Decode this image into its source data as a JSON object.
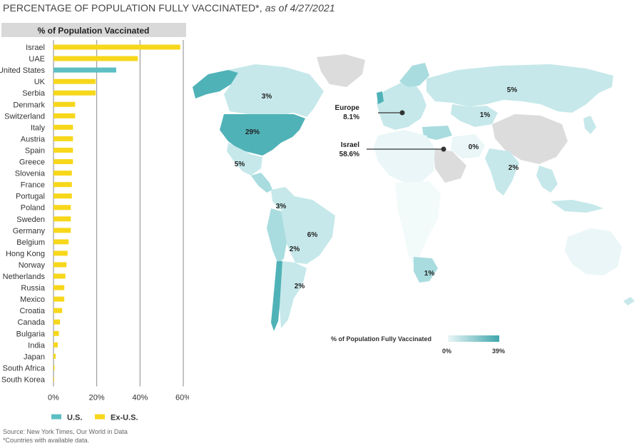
{
  "title": {
    "main": "Percentage of Population Fully Vaccinated*,",
    "date": "as of 4/27/2021"
  },
  "chart_data": [
    {
      "type": "bar",
      "orientation": "horizontal",
      "title": "% of Population Vaccinated",
      "categories": [
        "Israel",
        "UAE",
        "United States",
        "UK",
        "Serbia",
        "Denmark",
        "Switzerland",
        "Italy",
        "Austria",
        "Spain",
        "Greece",
        "Slovenia",
        "France",
        "Portugal",
        "Poland",
        "Sweden",
        "Germany",
        "Belgium",
        "Hong Kong",
        "Norway",
        "Netherlands",
        "Russia",
        "Mexico",
        "Croatia",
        "Canada",
        "Bulgaria",
        "India",
        "Japan",
        "South Africa",
        "South Korea"
      ],
      "values": [
        58.6,
        39,
        29,
        19.5,
        19.5,
        10,
        10,
        9,
        9,
        9,
        9,
        8.5,
        8.5,
        8.5,
        8,
        8,
        8,
        7,
        6.5,
        6,
        5.5,
        5,
        5,
        4,
        3,
        2.5,
        2,
        1,
        0.5,
        0.3
      ],
      "groups": [
        "Ex-U.S.",
        "Ex-U.S.",
        "U.S.",
        "Ex-U.S.",
        "Ex-U.S.",
        "Ex-U.S.",
        "Ex-U.S.",
        "Ex-U.S.",
        "Ex-U.S.",
        "Ex-U.S.",
        "Ex-U.S.",
        "Ex-U.S.",
        "Ex-U.S.",
        "Ex-U.S.",
        "Ex-U.S.",
        "Ex-U.S.",
        "Ex-U.S.",
        "Ex-U.S.",
        "Ex-U.S.",
        "Ex-U.S.",
        "Ex-U.S.",
        "Ex-U.S.",
        "Ex-U.S.",
        "Ex-U.S.",
        "Ex-U.S.",
        "Ex-U.S.",
        "Ex-U.S.",
        "Ex-U.S.",
        "Ex-U.S.",
        "Ex-U.S."
      ],
      "xlim": [
        0,
        60
      ],
      "xticks": [
        0,
        20,
        40,
        60
      ],
      "xtick_labels": [
        "0%",
        "20%",
        "40%",
        "60%"
      ],
      "grid": true,
      "legend": [
        {
          "name": "U.S.",
          "color": "#5bbfc4"
        },
        {
          "name": "Ex-U.S.",
          "color": "#f7d71b"
        }
      ],
      "legend_position": "bottom"
    },
    {
      "type": "choropleth",
      "annotations": [
        {
          "region": "Europe",
          "label": "Europe",
          "value": "8.1%"
        },
        {
          "region": "Israel",
          "label": "Israel",
          "value": "58.6%"
        }
      ],
      "region_labels": [
        {
          "region": "Canada",
          "text": "3%"
        },
        {
          "region": "United States",
          "text": "29%"
        },
        {
          "region": "Mexico",
          "text": "5%"
        },
        {
          "region": "Colombia",
          "text": "3%"
        },
        {
          "region": "Brazil",
          "text": "6%"
        },
        {
          "region": "Chile",
          "text": "2%"
        },
        {
          "region": "Argentina",
          "text": "2%"
        },
        {
          "region": "Russia",
          "text": "5%"
        },
        {
          "region": "Kazakhstan",
          "text": "1%"
        },
        {
          "region": "Iran",
          "text": "0%"
        },
        {
          "region": "India",
          "text": "2%"
        },
        {
          "region": "South Africa",
          "text": "1%"
        }
      ],
      "legend": {
        "title": "% of Population Fully Vaccinated",
        "min_label": "0%",
        "max_label": "39%",
        "min_color": "#eaf6f7",
        "max_color": "#3fa6ac"
      }
    }
  ],
  "source": {
    "line1": "Source: New York Times, Our World in Data",
    "line2": "*Countries with available data."
  },
  "colors": {
    "us": "#5bbfc4",
    "exus": "#f7d71b",
    "header_bg": "#d9d9d9",
    "grid": "#8a8a8a",
    "map_light": "#c6e8ea",
    "map_mid": "#a9dcdf",
    "map_dark": "#4fb2b7",
    "map_grey": "#dcdcdc",
    "land_outline": "#ffffff"
  }
}
